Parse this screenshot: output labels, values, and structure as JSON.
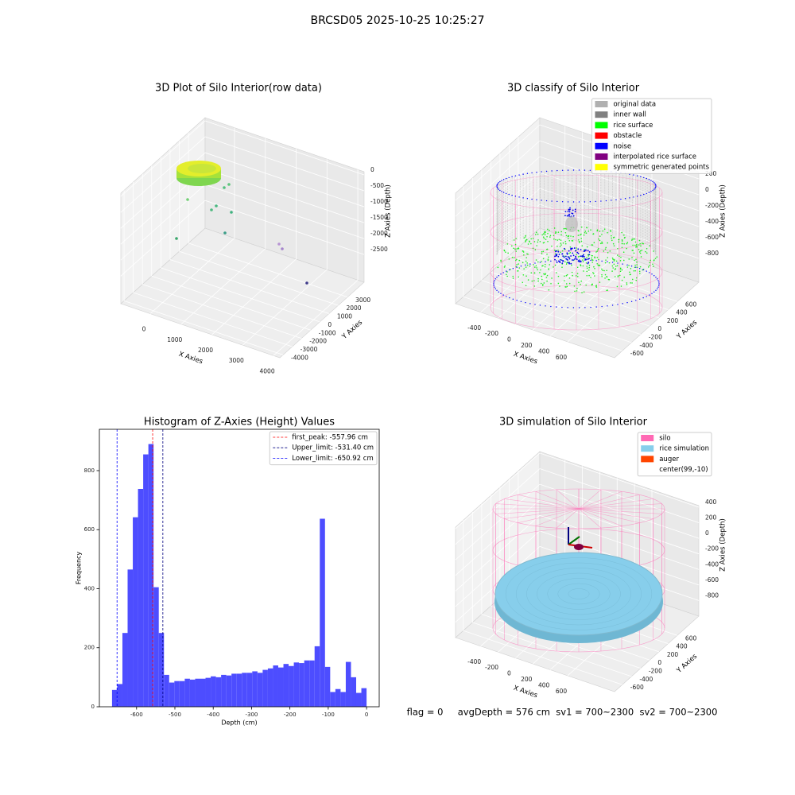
{
  "suptitle": "BRCSD05 2025-10-25 10:25:27",
  "footer": "flag = 0     avgDepth = 576 cm  sv1 = 700~2300  sv2 = 700~2300",
  "chart_data": [
    {
      "type": "scatter3d",
      "title": "3D Plot of Silo Interior(row data)",
      "xlabel": "X Axies",
      "ylabel": "Y Axies",
      "zlabel": "Z Axies (Depth)",
      "xlim": [
        -955,
        4205
      ],
      "xticks": [
        0,
        1000,
        2000,
        3000,
        4000
      ],
      "ylim": [
        -4350,
        4810
      ],
      "yticks": [
        -4000,
        -3000,
        -2000,
        -1000,
        0,
        1000,
        2000,
        3000
      ],
      "zlim": [
        -3370,
        100
      ],
      "zticks": [
        -2500,
        -2000,
        -1500,
        -1000,
        -500,
        0
      ]
    },
    {
      "type": "scatter3d",
      "title": "3D classify of Silo Interior",
      "xlabel": "X Axies",
      "ylabel": "Y Axies",
      "zlabel": "Z Axies (Depth)",
      "xlim": [
        -690,
        1140
      ],
      "xticks": [
        -400,
        -200,
        0,
        200,
        400,
        600
      ],
      "ylim": [
        -770,
        1070
      ],
      "yticks": [
        -600,
        -400,
        -200,
        0,
        200,
        400,
        600
      ],
      "zlim": [
        -1100,
        290
      ],
      "zticks": [
        -800,
        -600,
        -400,
        -200,
        0,
        200
      ],
      "legend_loc": "upper right",
      "legend": [
        {
          "name": "original data",
          "color": "#b0b0b0"
        },
        {
          "name": "inner wall",
          "color": "#808080"
        },
        {
          "name": "rice surface",
          "color": "#00ff00"
        },
        {
          "name": "obstacle",
          "color": "#ff0000"
        },
        {
          "name": "noise",
          "color": "#0000ff"
        },
        {
          "name": "interpolated rice surface",
          "color": "#800080"
        },
        {
          "name": "symmetric generated points",
          "color": "#ffff00"
        }
      ]
    },
    {
      "type": "histogram",
      "title": "Histogram of Z-Axies (Height) Values",
      "xlabel": "Depth (cm)",
      "ylabel": "Frequency",
      "color": "#4d4dff",
      "bins": [
        -664,
        -650.45,
        -636.9,
        -623.35,
        -609.8,
        -596.25,
        -582.7,
        -569.15,
        -555.6,
        -542.05,
        -528.5,
        -514.95,
        -501.4,
        -487.85,
        -474.3,
        -460.75,
        -447.2,
        -433.65,
        -420.1,
        -406.55,
        -393,
        -379.45,
        -365.9,
        -352.35,
        -338.8,
        -325.25,
        -311.7,
        -298.15,
        -284.6,
        -271.05,
        -257.5,
        -243.95,
        -230.4,
        -216.85,
        -203.3,
        -189.75,
        -176.2,
        -162.65,
        -149.1,
        -135.55,
        -122,
        -108.45,
        -94.9,
        -81.35,
        -67.8,
        -54.25,
        -40.7,
        -27.15,
        -13.6,
        0
      ],
      "counts": [
        57,
        77,
        250,
        465,
        642,
        738,
        855,
        890,
        405,
        250,
        108,
        82,
        87,
        87,
        95,
        92,
        95,
        95,
        98,
        103,
        100,
        108,
        106,
        112,
        112,
        115,
        115,
        120,
        115,
        125,
        130,
        140,
        133,
        145,
        138,
        150,
        148,
        157,
        157,
        205,
        637,
        135,
        50,
        60,
        50,
        152,
        100,
        47,
        63
      ],
      "xlim": [
        -697,
        33
      ],
      "xticks": [
        -600,
        -500,
        -400,
        -300,
        -200,
        -100,
        0
      ],
      "ylim": [
        0,
        940
      ],
      "yticks": [
        0,
        200,
        400,
        600,
        800
      ],
      "legend_loc": "upper right",
      "lines": [
        {
          "name": "first_peak: -557.96 cm",
          "value": -557.96,
          "color": "#ff0000"
        },
        {
          "name": "Upper_limit: -531.40 cm",
          "value": -531.4,
          "color": "#000080"
        },
        {
          "name": "Lower_limit: -650.92 cm",
          "value": -650.92,
          "color": "#0000ff"
        }
      ]
    },
    {
      "type": "scatter3d",
      "title": "3D simulation of Silo Interior",
      "xlabel": "X Axies",
      "ylabel": "Y Axies",
      "zlabel": "Z Axies (Depth)",
      "xlim": [
        -690,
        1140
      ],
      "xticks": [
        -400,
        -200,
        0,
        200,
        400,
        600
      ],
      "ylim": [
        -770,
        1070
      ],
      "yticks": [
        -600,
        -400,
        -200,
        0,
        200,
        400,
        600
      ],
      "zlim": [
        -1000,
        420
      ],
      "zticks": [
        -800,
        -600,
        -400,
        -200,
        0,
        200,
        400
      ],
      "legend_loc": "upper right",
      "legend": [
        {
          "name": "silo",
          "color": "#ff69b4"
        },
        {
          "name": "rice simulation",
          "color": "#87ceeb"
        },
        {
          "name": "auger",
          "color": "#ff4500"
        },
        {
          "name": "center(99,-10)"
        }
      ]
    }
  ]
}
